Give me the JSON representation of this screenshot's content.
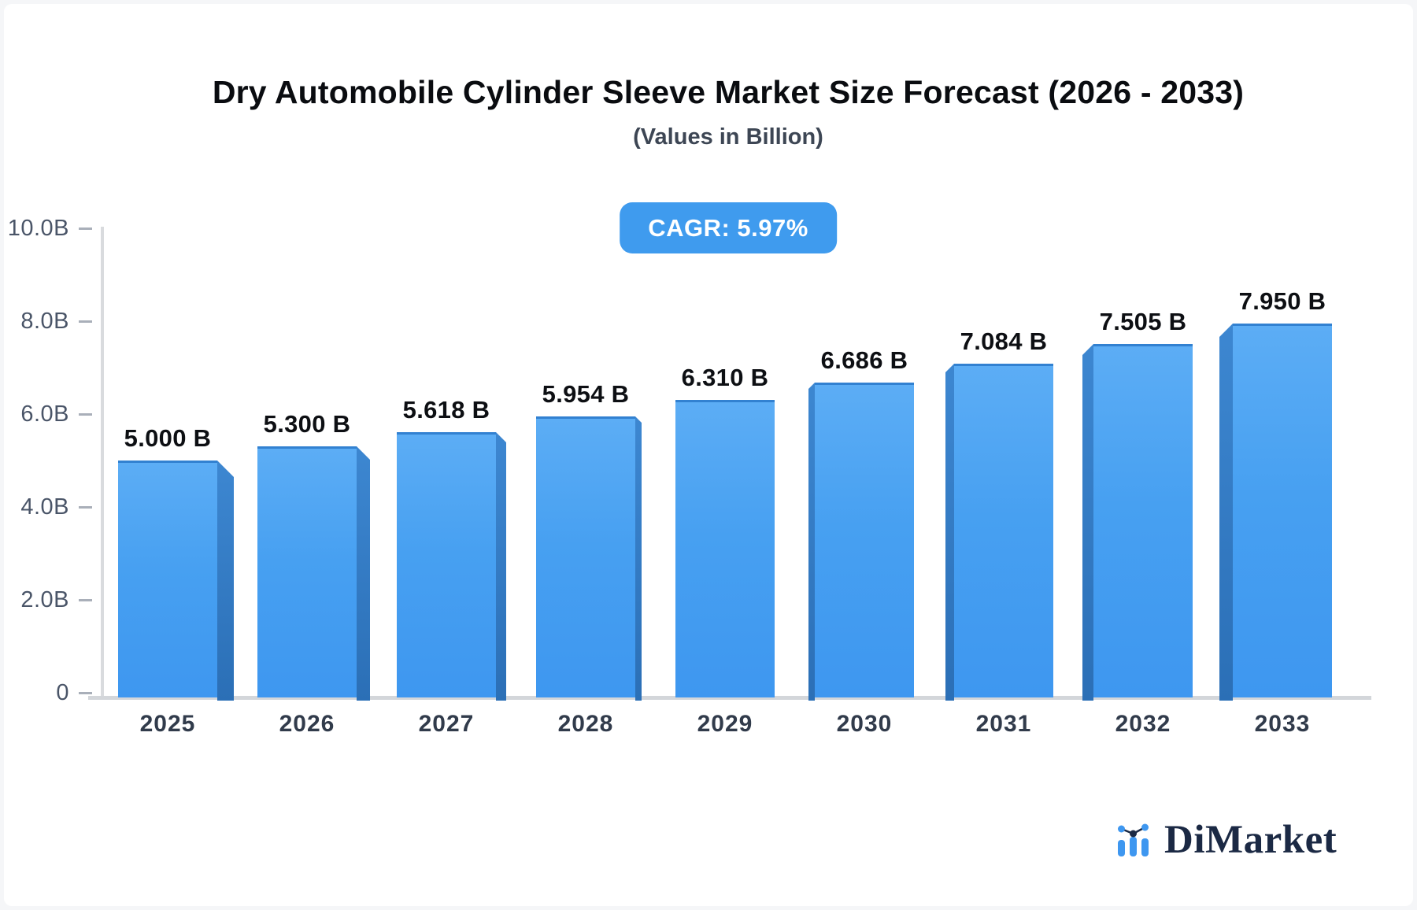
{
  "header": {
    "title": "Dry Automobile Cylinder Sleeve Market Size Forecast (2026 - 2033)",
    "subtitle": "(Values in Billion)",
    "cagr_badge": "CAGR: 5.97%"
  },
  "chart_data": {
    "type": "bar",
    "title": "Dry Automobile Cylinder Sleeve Market Size Forecast (2026 - 2033)",
    "subtitle": "(Values in Billion)",
    "unit": "Billion",
    "cagr": "5.97%",
    "categories": [
      "2025",
      "2026",
      "2027",
      "2028",
      "2029",
      "2030",
      "2031",
      "2032",
      "2033"
    ],
    "values": [
      5.0,
      5.3,
      5.618,
      5.954,
      6.31,
      6.686,
      7.084,
      7.505,
      7.95
    ],
    "value_labels": [
      "5.000 B",
      "5.300 B",
      "5.618 B",
      "5.954 B",
      "6.310 B",
      "6.686 B",
      "7.084 B",
      "7.505 B",
      "7.950 B"
    ],
    "ylim": [
      0,
      10
    ],
    "y_ticks": [
      {
        "value": 10,
        "label": "10.0B"
      },
      {
        "value": 8,
        "label": "8.0B"
      },
      {
        "value": 6,
        "label": "6.0B"
      },
      {
        "value": 4,
        "label": "4.0B"
      },
      {
        "value": 2,
        "label": "2.0B"
      },
      {
        "value": 0,
        "label": "0"
      }
    ],
    "grid": false,
    "legend": false,
    "colors": {
      "bar_top": "#5cadf5",
      "bar_bottom": "#3e97f0",
      "bar_side": "#2f7ac6",
      "badge": "#3f9bee"
    }
  },
  "branding": {
    "logo_text": "DiMarket",
    "logo_icon": "mini-bar-chart-icon",
    "icon_blue": "#3e97f0",
    "dot_navy": "#1b2944"
  }
}
